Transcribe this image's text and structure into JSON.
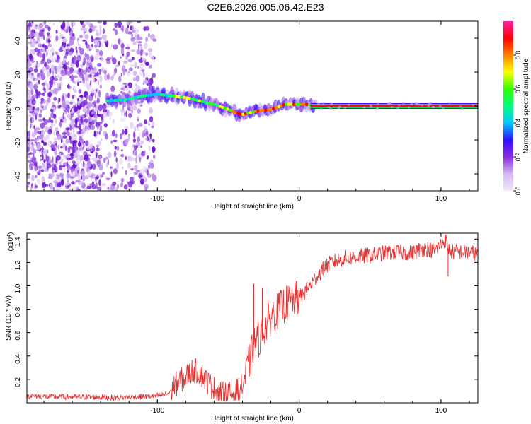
{
  "title": "C2E6.2026.005.06.42.E23",
  "chart_data": [
    {
      "type": "heatmap",
      "name": "spectrogram",
      "xlabel": "Height of straight line (km)",
      "ylabel": "Frequency (Hz)",
      "xlim": [
        -192,
        126
      ],
      "ylim": [
        -50,
        50
      ],
      "xticks": [
        -100,
        0,
        100
      ],
      "xtick_labels": [
        "-100",
        "0",
        "100"
      ],
      "yticks": [
        -40,
        -20,
        0,
        20,
        40
      ],
      "ytick_labels": [
        "-40",
        "-20",
        "0",
        "20",
        "40"
      ],
      "colorbar": {
        "label": "Normalized spectral amplitude",
        "range": [
          0,
          1
        ],
        "ticks": [
          0.0,
          0.2,
          0.4,
          0.6,
          0.8
        ],
        "tick_labels": [
          "0.0",
          "0.2",
          "0.4",
          "0.6",
          "0.8"
        ],
        "colors": [
          "#f0e8fa",
          "#d4b8f0",
          "#8a2be2",
          "#3010ff",
          "#00c8ff",
          "#00ff80",
          "#30ff00",
          "#ffff00",
          "#ff8000",
          "#ff0000",
          "#ff20a0"
        ]
      },
      "noise_region_x": [
        -192,
        -102
      ],
      "trace": {
        "x": [
          -135,
          -120,
          -110,
          -100,
          -90,
          -80,
          -70,
          -60,
          -50,
          -45,
          -40,
          -35,
          -30,
          -20,
          -10,
          0,
          5,
          10,
          50,
          100,
          126
        ],
        "y": [
          3,
          4,
          6,
          7,
          6,
          5,
          3,
          1,
          -2,
          -4,
          -5,
          -4,
          -3,
          -2,
          1,
          1,
          1,
          0,
          0,
          0,
          0
        ]
      }
    },
    {
      "type": "line",
      "name": "snr",
      "xlabel": "Height of straight line (km)",
      "ylabel": "SNR (10 * v/v)",
      "yscale_label": "(x10",
      "yscale_exponent": "4",
      "xlim": [
        -192,
        126
      ],
      "ylim": [
        0,
        14500
      ],
      "xticks": [
        -100,
        0,
        100
      ],
      "xtick_labels": [
        "-100",
        "0",
        "100"
      ],
      "yticks": [
        2000,
        4000,
        6000,
        8000,
        10000,
        12000,
        14000
      ],
      "ytick_labels": [
        "0.2",
        "0.4",
        "0.6",
        "0.8",
        "1.0",
        "1.2",
        "1.4"
      ],
      "color": "#e83030",
      "series": {
        "x": [
          -192,
          -170,
          -150,
          -130,
          -115,
          -100,
          -92,
          -88,
          -80,
          -75,
          -70,
          -65,
          -60,
          -55,
          -50,
          -45,
          -40,
          -35,
          -32,
          -30,
          -28,
          -25,
          -20,
          -15,
          -10,
          -5,
          0,
          5,
          10,
          15,
          20,
          25,
          30,
          40,
          50,
          60,
          70,
          80,
          85,
          90,
          95,
          100,
          103,
          105,
          108,
          115,
          126
        ],
        "y": [
          600,
          500,
          500,
          450,
          500,
          600,
          800,
          1500,
          2200,
          2800,
          2600,
          1800,
          1200,
          800,
          700,
          900,
          1500,
          3500,
          5000,
          5300,
          5500,
          6300,
          7300,
          7900,
          8400,
          8700,
          9000,
          9600,
          10400,
          11200,
          11800,
          12100,
          12300,
          12500,
          12600,
          12800,
          12900,
          12800,
          13100,
          13200,
          13000,
          13500,
          14000,
          13200,
          12900,
          12900,
          12800
        ]
      },
      "spikes": [
        {
          "x": -32,
          "y": 10200
        },
        {
          "x": -26,
          "y": 9800
        },
        {
          "x": -22,
          "y": 8800
        },
        {
          "x": 103,
          "y": 13900
        },
        {
          "x": 105,
          "y": 10800
        }
      ]
    }
  ]
}
